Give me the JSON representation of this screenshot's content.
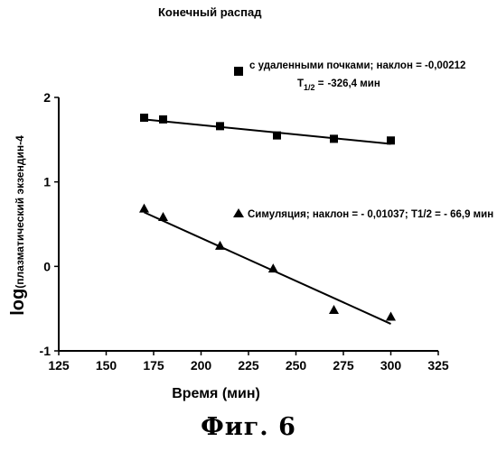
{
  "chart_data": {
    "type": "scatter",
    "title": "Конечный распад",
    "xlabel": "Время (мин)",
    "ylabel_main": "log",
    "ylabel_sub": "(плазматический экзендин-4",
    "xlim": [
      125,
      325
    ],
    "ylim": [
      -1,
      2
    ],
    "xticks": [
      125,
      150,
      175,
      200,
      225,
      250,
      275,
      300,
      325
    ],
    "yticks": [
      -1,
      0,
      1,
      2
    ],
    "series": [
      {
        "name": "с удаленными почками; наклон = -0,00212",
        "sub_label": "-326,4 мин",
        "marker": "square",
        "x": [
          170,
          180,
          210,
          240,
          270,
          300
        ],
        "y": [
          1.76,
          1.74,
          1.66,
          1.55,
          1.51,
          1.49
        ],
        "fit": [
          [
            170,
            1.74
          ],
          [
            300,
            1.45
          ]
        ]
      },
      {
        "name": "Симуляция; наклон = - 0,01037; T1/2 = - 66,9 мин",
        "marker": "triangle",
        "x": [
          170,
          180,
          210,
          238,
          270,
          300
        ],
        "y": [
          0.68,
          0.58,
          0.24,
          -0.03,
          -0.52,
          -0.6
        ],
        "fit": [
          [
            170,
            0.64
          ],
          [
            300,
            -0.68
          ]
        ]
      }
    ],
    "half_life_label": "T",
    "half_life_sub": "1/2",
    "half_life_eq": " =",
    "figure_caption": "Фиг. 6"
  }
}
